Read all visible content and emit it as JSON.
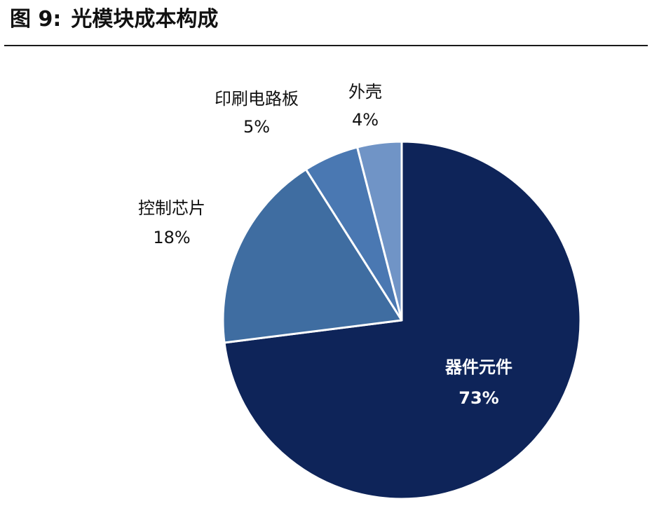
{
  "header": {
    "figure_number": "图 9:",
    "title": "光模块成本构成"
  },
  "chart_data": {
    "type": "pie",
    "title": "光模块成本构成",
    "categories": [
      "器件元件",
      "控制芯片",
      "印刷电路板",
      "外壳"
    ],
    "values": [
      73,
      18,
      5,
      4
    ],
    "value_labels": [
      "73%",
      "18%",
      "5%",
      "4%"
    ],
    "unit": "%",
    "start": "12 o'clock",
    "direction": "clockwise",
    "legend": "none (labels beside slices)",
    "colors": [
      "#0e2459",
      "#3f6da1",
      "#4a78b2",
      "#7094c6"
    ],
    "label_colors": [
      "#ffffff",
      "#111111",
      "#111111",
      "#111111"
    ]
  }
}
